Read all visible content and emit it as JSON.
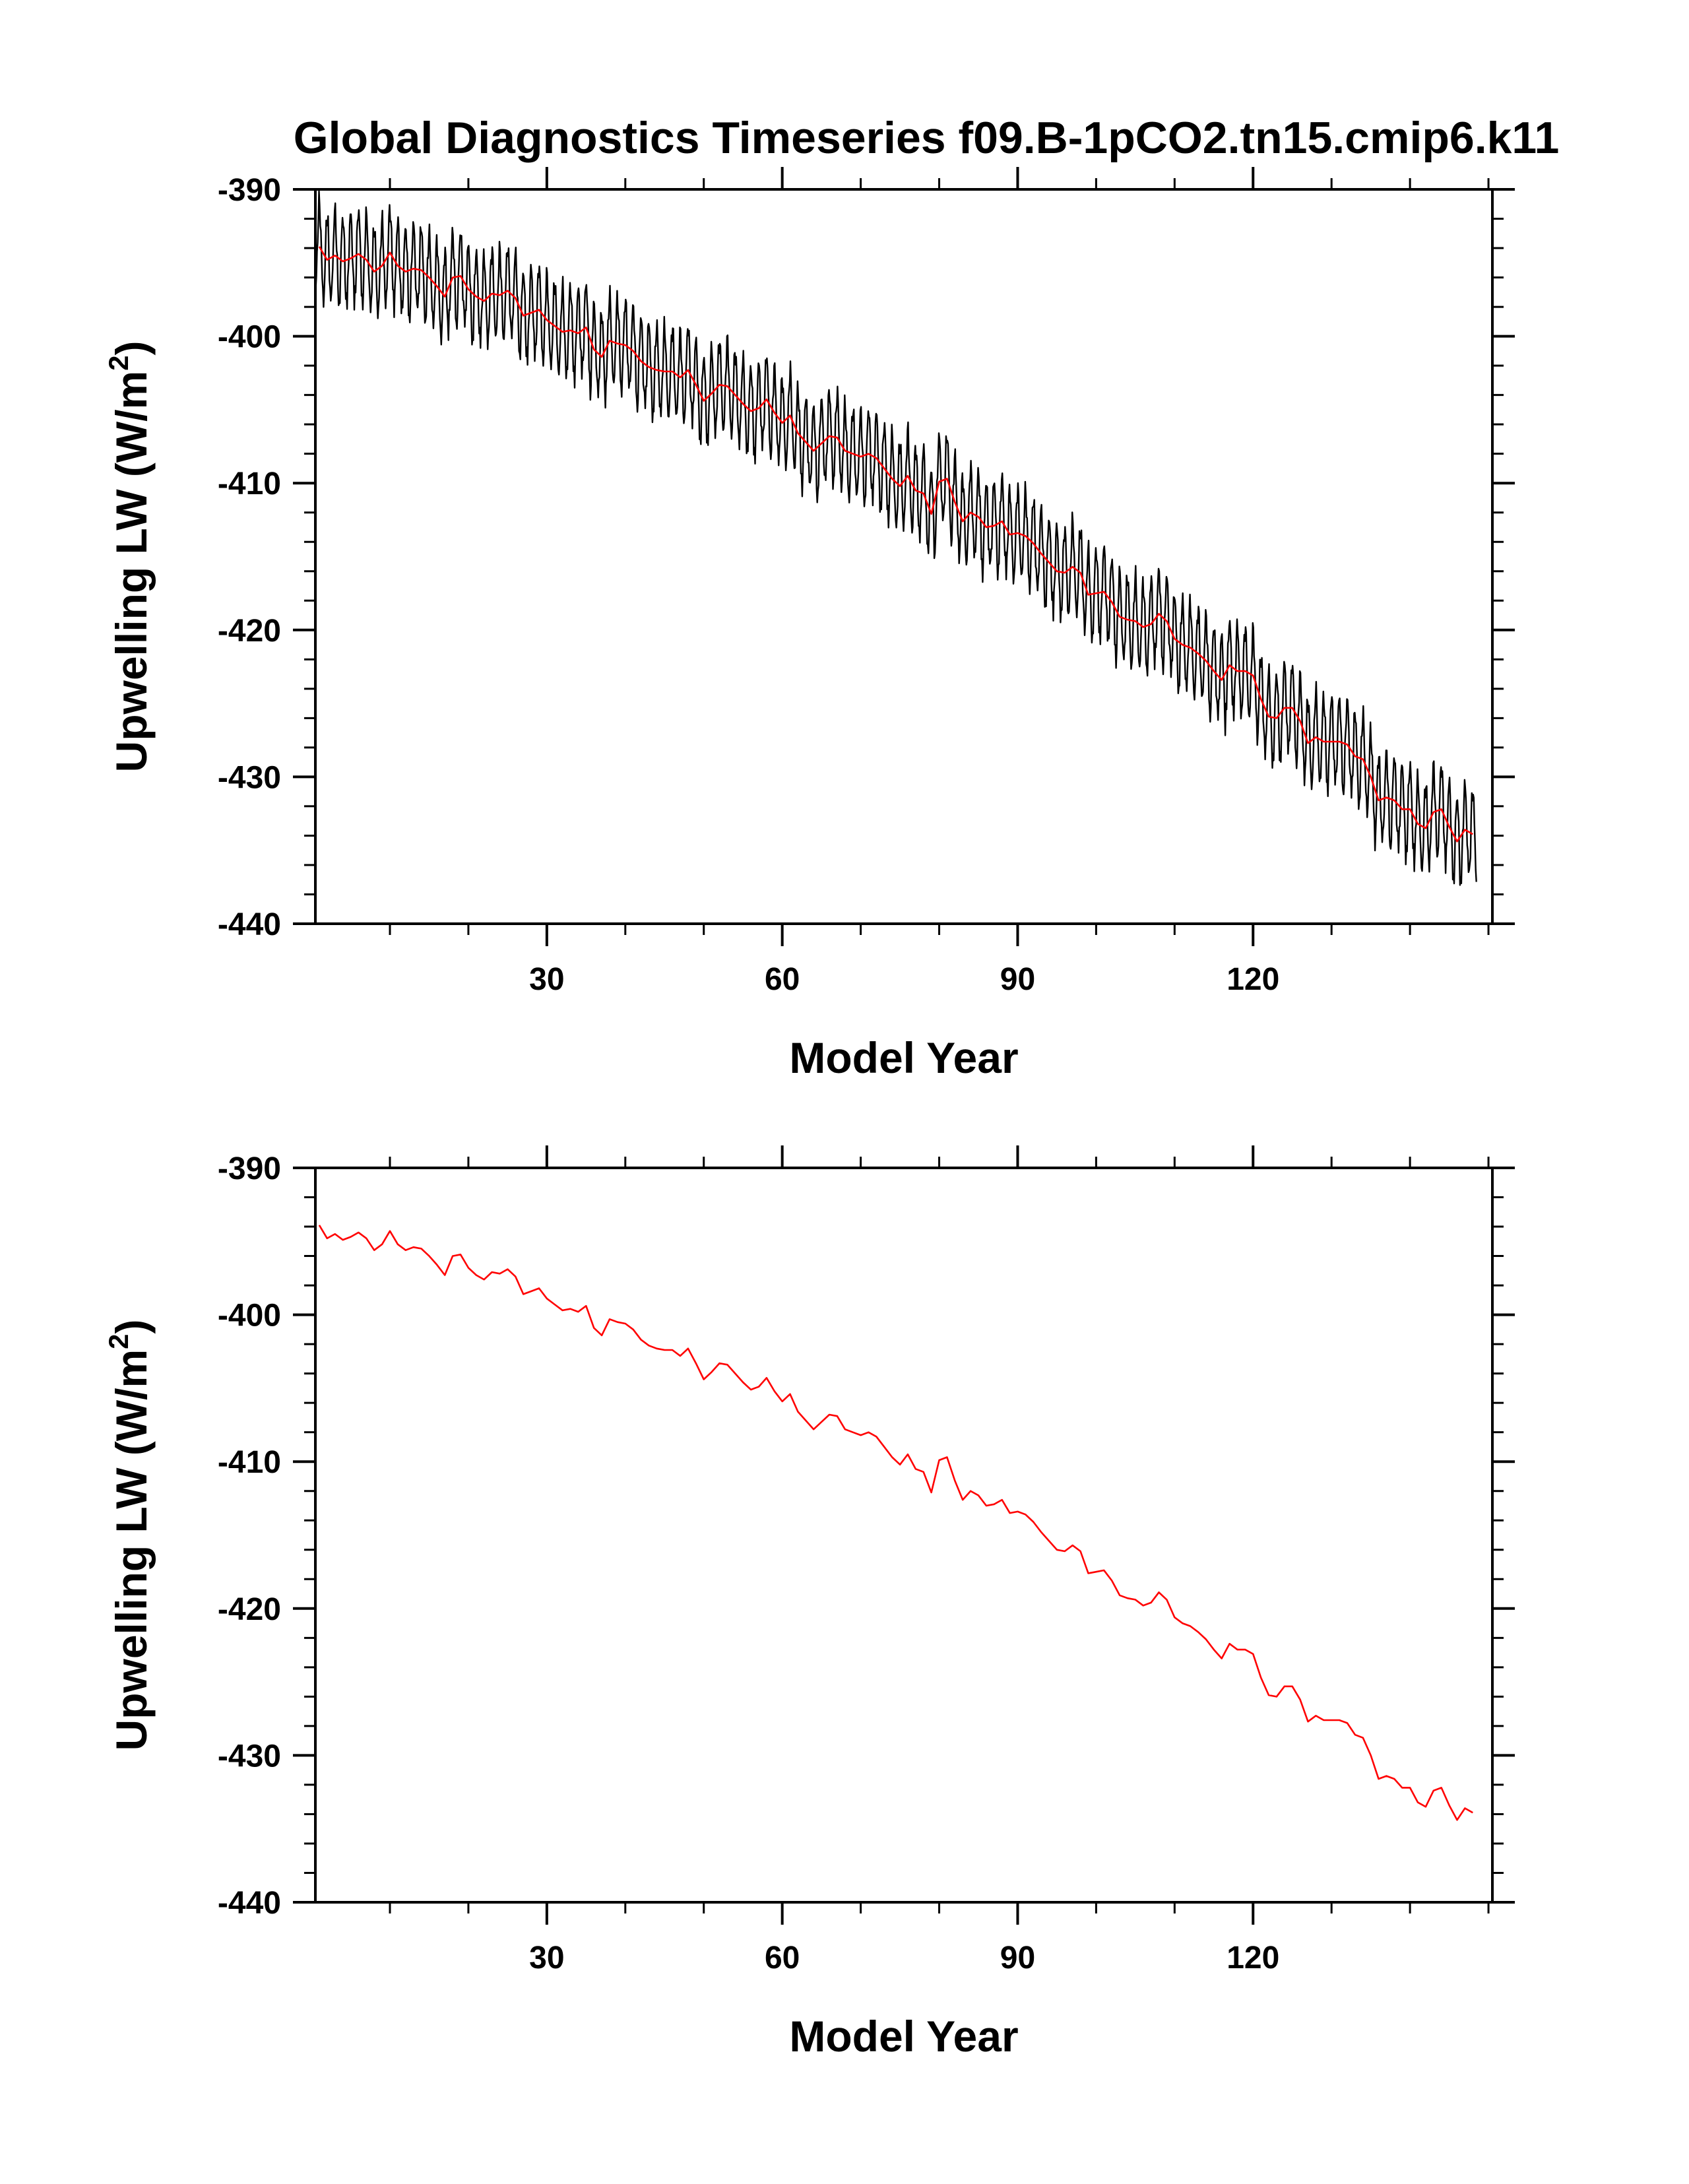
{
  "title": "Global Diagnostics Timeseries f09.B-1pCO2.tn15.cmip6.k11",
  "colors": {
    "monthly": "#000000",
    "annual": "#ff0000",
    "axes": "#000000",
    "background": "#ffffff"
  },
  "chart_data": [
    {
      "type": "line",
      "panel": "top",
      "xlabel": "Model Year",
      "ylabel": "Upwelling LW (W/m",
      "ylabel_superscript": "2",
      "ylabel_suffix": ")",
      "xlim": [
        0.5,
        150.5
      ],
      "ylim": [
        -440,
        -390
      ],
      "xticks": [
        30,
        60,
        90,
        120
      ],
      "yticks": [
        -390,
        -400,
        -410,
        -420,
        -430,
        -440
      ],
      "x_minor_step": 10,
      "y_minor_step": 2,
      "mirror_ticks": true,
      "grid": false,
      "monthly_seasonal_amplitude": 3.0,
      "series": [
        {
          "style": "monthly",
          "color": "#000000",
          "resolution": "monthly"
        },
        {
          "style": "annual",
          "color": "#ff0000",
          "resolution": "annual"
        }
      ]
    },
    {
      "type": "line",
      "panel": "bottom",
      "xlabel": "Model Year",
      "ylabel": "Upwelling LW (W/m",
      "ylabel_superscript": "2",
      "ylabel_suffix": ")",
      "xlim": [
        0.5,
        150.5
      ],
      "ylim": [
        -440,
        -390
      ],
      "xticks": [
        30,
        60,
        90,
        120
      ],
      "yticks": [
        -390,
        -400,
        -410,
        -420,
        -430,
        -440
      ],
      "x_minor_step": 10,
      "y_minor_step": 2,
      "mirror_ticks": true,
      "grid": false,
      "series": [
        {
          "style": "annual",
          "color": "#ff0000",
          "resolution": "annual"
        }
      ]
    }
  ],
  "annual_values": [
    -393.9,
    -394.8,
    -394.5,
    -394.9,
    -394.7,
    -394.4,
    -394.8,
    -395.6,
    -395.2,
    -394.3,
    -395.2,
    -395.6,
    -395.4,
    -395.5,
    -396.0,
    -396.6,
    -397.3,
    -396.0,
    -395.9,
    -396.8,
    -397.3,
    -397.6,
    -397.1,
    -397.2,
    -396.9,
    -397.4,
    -398.6,
    -398.4,
    -398.2,
    -398.9,
    -399.3,
    -399.7,
    -399.6,
    -399.8,
    -399.4,
    -400.9,
    -401.4,
    -400.3,
    -400.5,
    -400.6,
    -401.0,
    -401.7,
    -402.1,
    -402.3,
    -402.4,
    -402.4,
    -402.8,
    -402.3,
    -403.3,
    -404.4,
    -403.9,
    -403.3,
    -403.4,
    -404.0,
    -404.6,
    -405.1,
    -404.9,
    -404.3,
    -405.2,
    -405.9,
    -405.4,
    -406.6,
    -407.2,
    -407.8,
    -407.3,
    -406.8,
    -406.9,
    -407.8,
    -408.0,
    -408.2,
    -408.0,
    -408.3,
    -409.0,
    -409.7,
    -410.2,
    -409.5,
    -410.5,
    -410.7,
    -412.1,
    -409.9,
    -409.7,
    -411.3,
    -412.6,
    -412.0,
    -412.3,
    -413.0,
    -412.9,
    -412.6,
    -413.5,
    -413.4,
    -413.6,
    -414.1,
    -414.8,
    -415.4,
    -416.0,
    -416.1,
    -415.7,
    -416.1,
    -417.6,
    -417.5,
    -417.4,
    -418.1,
    -419.1,
    -419.3,
    -419.4,
    -419.8,
    -419.6,
    -418.9,
    -419.4,
    -420.6,
    -421.0,
    -421.2,
    -421.6,
    -422.1,
    -422.8,
    -423.4,
    -422.4,
    -422.8,
    -422.8,
    -423.1,
    -424.7,
    -425.9,
    -426.0,
    -425.3,
    -425.3,
    -426.2,
    -427.7,
    -427.3,
    -427.6,
    -427.6,
    -427.6,
    -427.8,
    -428.6,
    -428.8,
    -430.0,
    -431.6,
    -431.4,
    -431.6,
    -432.2,
    -432.2,
    -433.2,
    -433.5,
    -432.4,
    -432.2,
    -433.4,
    -434.4,
    -433.6,
    -433.9
  ]
}
